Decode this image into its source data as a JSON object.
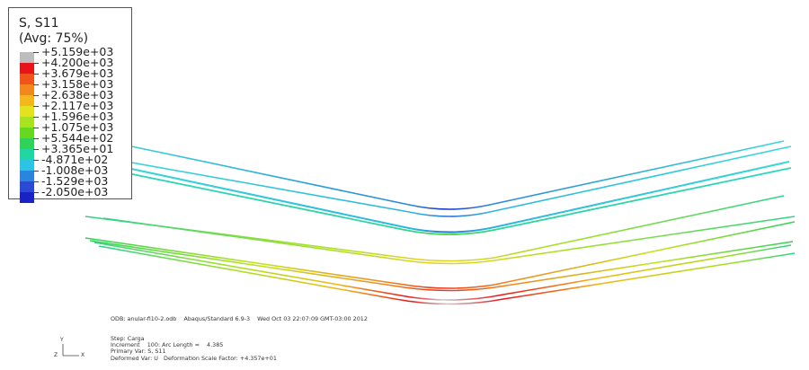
{
  "legend": {
    "title": "S, S11",
    "averaging": "(Avg: 75%)",
    "values": [
      "+5.159e+03",
      "+4.200e+03",
      "+3.679e+03",
      "+3.158e+03",
      "+2.638e+03",
      "+2.117e+03",
      "+1.596e+03",
      "+1.075e+03",
      "+5.544e+02",
      "+3.365e+01",
      "-4.871e+02",
      "-1.008e+03",
      "-1.529e+03",
      "-2.050e+03"
    ],
    "colors": [
      "#bdbdbd",
      "#e8141a",
      "#f0541a",
      "#f3861d",
      "#f5b81c",
      "#e4e21f",
      "#a9e21f",
      "#68d81f",
      "#2fd35a",
      "#1fd6a4",
      "#2bc4e4",
      "#2a86dd",
      "#2a4ad3",
      "#1a22c4"
    ]
  },
  "info": {
    "odb": "ODB: anular-fi10-2.odb    Abaqus/Standard 6.9-3    Wed Oct 03 22:07:09 GMT-03:00 2012",
    "step": "Step: Carga",
    "increment": "Increment    100: Arc Length =    4.385",
    "primary_var": "Primary Var: S, S11",
    "deformed_var": "Deformed Var: U   Deformation Scale Factor: +4.357e+01"
  },
  "triad": {
    "y_label": "Y",
    "z_label": "Z",
    "x_label": "X"
  }
}
